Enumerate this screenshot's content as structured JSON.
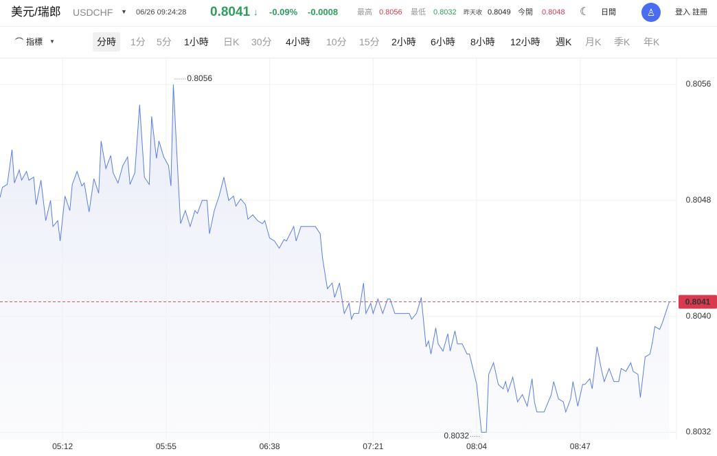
{
  "header": {
    "title": "美元/瑞郎",
    "symbol": "USDCHF",
    "timestamp": "06/26 09:24:28",
    "price": "0.8041",
    "change": "-0.09%",
    "change_abs": "-0.0008",
    "stats": [
      {
        "label": "最高",
        "value": "0.8056"
      },
      {
        "label": "最低",
        "value": "0.8032"
      },
      {
        "label": "昨天收",
        "value": "0.8049"
      },
      {
        "label": "今開",
        "value": "0.8048"
      }
    ],
    "theme": "日間",
    "login": "登入 註冊"
  },
  "toolbar": {
    "indicator": "指標",
    "periods": [
      "分時",
      "1分",
      "5分",
      "1小時",
      "日K",
      "30分",
      "4小時",
      "10分",
      "15分",
      "2小時",
      "6小時",
      "8小時",
      "12小時",
      "週K",
      "月K",
      "季K",
      "年K"
    ]
  },
  "chart_data": {
    "type": "line",
    "color": "#5a7ee0",
    "x": [
      286,
      287,
      289,
      291,
      292,
      294,
      295,
      297,
      298,
      300,
      301,
      303,
      305,
      307,
      308,
      310,
      311,
      313,
      315,
      316,
      318,
      320,
      321,
      323,
      325,
      327,
      328,
      330,
      332,
      333,
      335,
      337,
      339,
      340,
      342,
      344,
      346,
      348,
      349,
      351,
      352,
      354,
      356,
      357,
      358,
      360,
      361,
      363,
      365,
      367,
      368,
      370,
      372,
      373,
      375,
      377,
      379,
      381,
      383,
      384,
      386,
      388,
      389,
      391,
      393,
      395,
      396,
      398,
      400,
      402,
      404,
      405,
      408,
      409,
      411,
      413,
      417,
      419,
      420,
      422,
      424,
      425,
      427,
      429,
      431,
      432,
      433,
      435,
      437,
      438,
      440,
      441,
      443,
      445,
      447,
      448,
      450,
      452,
      454,
      456,
      457,
      459,
      461,
      463,
      464,
      465,
      467,
      468,
      470,
      472,
      473,
      475,
      476,
      478,
      480,
      481,
      483,
      484,
      486,
      488,
      489,
      491,
      493,
      495,
      496,
      497,
      499,
      501,
      503,
      505,
      507,
      508,
      509,
      512,
      515,
      516,
      518,
      520,
      521,
      523,
      524,
      526,
      528,
      529,
      531,
      532,
      534,
      536,
      537,
      539,
      541,
      543,
      544,
      546,
      548,
      549,
      551,
      552,
      554,
      556,
      557,
      558,
      560,
      561,
      564
    ],
    "values": [
      0.80482,
      0.80489,
      0.80491,
      0.80515,
      0.80492,
      0.80501,
      0.80494,
      0.805,
      0.80494,
      0.80496,
      0.80477,
      0.80494,
      0.80466,
      0.8048,
      0.80462,
      0.80466,
      0.80452,
      0.80483,
      0.80473,
      0.80491,
      0.805,
      0.8049,
      0.80492,
      0.80472,
      0.80495,
      0.80485,
      0.80521,
      0.80502,
      0.80511,
      0.80499,
      0.80492,
      0.80504,
      0.8051,
      0.80491,
      0.80499,
      0.80546,
      0.80496,
      0.80491,
      0.80538,
      0.80509,
      0.80521,
      0.8051,
      0.80504,
      0.8049,
      0.8056,
      0.80495,
      0.80464,
      0.80473,
      0.80462,
      0.80473,
      0.80471,
      0.8048,
      0.8048,
      0.80457,
      0.80473,
      0.80483,
      0.80496,
      0.8048,
      0.80483,
      0.80476,
      0.80481,
      0.80477,
      0.80467,
      0.8047,
      0.80466,
      0.80464,
      0.80466,
      0.80454,
      0.80452,
      0.80447,
      0.80453,
      0.80452,
      0.80462,
      0.80452,
      0.80462,
      0.80462,
      0.80462,
      0.80457,
      0.8044,
      0.80419,
      0.80423,
      0.80413,
      0.80423,
      0.80402,
      0.80409,
      0.80398,
      0.80402,
      0.80402,
      0.80423,
      0.80402,
      0.80409,
      0.80402,
      0.80412,
      0.80402,
      0.80412,
      0.80412,
      0.80402,
      0.80402,
      0.80402,
      0.80402,
      0.80398,
      0.80402,
      0.80413,
      0.80379,
      0.80383,
      0.80374,
      0.80392,
      0.80381,
      0.80376,
      0.80388,
      0.80376,
      0.8039,
      0.80381,
      0.80381,
      0.80374,
      0.80374,
      0.8036,
      0.80353,
      0.8032,
      0.8032,
      0.8036,
      0.80368,
      0.80353,
      0.8035,
      0.80355,
      0.80348,
      0.80358,
      0.80341,
      0.80346,
      0.80338,
      0.80357,
      0.80341,
      0.80334,
      0.80334,
      0.80346,
      0.80355,
      0.80343,
      0.80341,
      0.80334,
      0.80343,
      0.80355,
      0.80338,
      0.80353,
      0.80353,
      0.80357,
      0.8035,
      0.80379,
      0.80362,
      0.80355,
      0.80364,
      0.80355,
      0.80355,
      0.80364,
      0.80362,
      0.80368,
      0.80362,
      0.8036,
      0.80344,
      0.80372,
      0.80374,
      0.80382,
      0.80393,
      0.80391,
      0.80395,
      0.8041
    ],
    "xlim": [
      286,
      567
    ],
    "xticks": [
      {
        "value": 312,
        "label": "05:12"
      },
      {
        "value": 355,
        "label": "05:55"
      },
      {
        "value": 398,
        "label": "06:38"
      },
      {
        "value": 441,
        "label": "07:21"
      },
      {
        "value": 484,
        "label": "08:04"
      },
      {
        "value": 527,
        "label": "08:47"
      }
    ],
    "ylim": [
      0.80315,
      0.80578
    ],
    "yticks": [
      0.8032,
      {
        "value": 0.804,
        "label": "0.8040"
      },
      0.8048,
      0.8056
    ],
    "grid": true,
    "high_label": 0.8056,
    "low_label": 0.8032,
    "current_price": 0.8041
  }
}
